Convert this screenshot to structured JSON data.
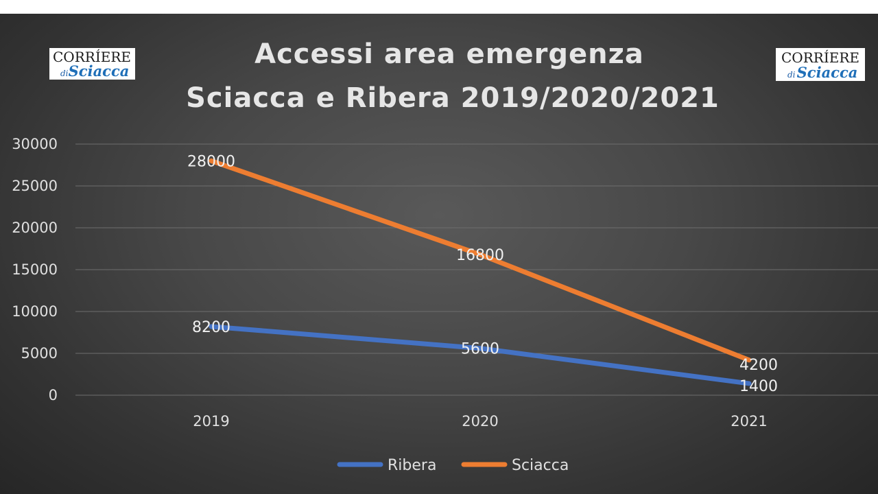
{
  "logo": {
    "line1": "CORRÍERE",
    "di": "di",
    "line2": "Sciacca"
  },
  "chart_data": {
    "type": "line",
    "title_lines": [
      "Accessi area emergenza",
      "Sciacca e Ribera 2019/2020/2021"
    ],
    "categories": [
      "2019",
      "2020",
      "2021"
    ],
    "ylim": [
      0,
      30000
    ],
    "yticks": [
      0,
      5000,
      10000,
      15000,
      20000,
      25000,
      30000
    ],
    "grid": true,
    "legend_position": "bottom",
    "series": [
      {
        "name": "Ribera",
        "color": "#4472c4",
        "values": [
          8200,
          5600,
          1400
        ]
      },
      {
        "name": "Sciacca",
        "color": "#ed7d31",
        "values": [
          28000,
          16800,
          4200
        ]
      }
    ]
  }
}
